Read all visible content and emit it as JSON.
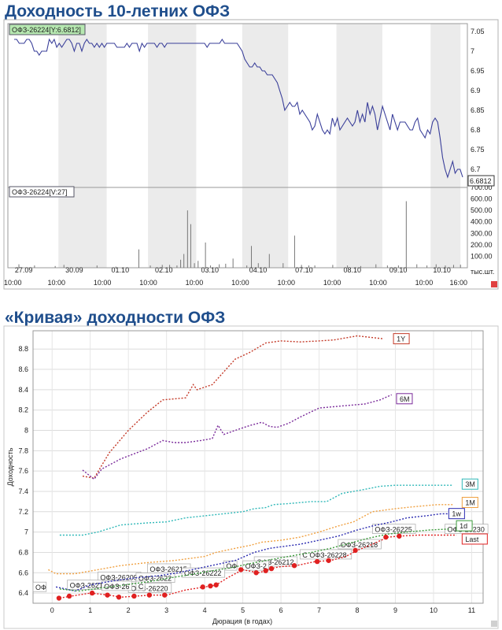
{
  "headings": {
    "top": "Доходность 10-летних ОФЗ",
    "bottom": "«Кривая» доходности ОФЗ"
  },
  "chart_data": [
    {
      "type": "line",
      "title": "Доходность 10-летних ОФЗ",
      "price_legend": "ОФЗ-26224[Y:6.6812]",
      "volume_legend": "ОФЗ-26224[V:27]",
      "last_value_label": "6.6812",
      "volume_unit": "тыс.шт.",
      "y_ticks": [
        "7.05",
        "7",
        "6.95",
        "6.9",
        "6.85",
        "6.8",
        "6.75",
        "6.7"
      ],
      "volume_ticks": [
        "700.00",
        "600.00",
        "500.00",
        "400.00",
        "300.00",
        "200.00",
        "100.00"
      ],
      "ylim": [
        6.66,
        7.07
      ],
      "volume_lim": [
        0,
        700
      ],
      "x_time_labels": [
        "10:00",
        "10:00",
        "10:00",
        "10:00",
        "10:00",
        "10:00",
        "10:00",
        "10:00",
        "10:00",
        "10:00",
        "16:00"
      ],
      "x_date_labels": [
        "27.09",
        "30.09",
        "01.10",
        "02.10",
        "03.10",
        "04.10",
        "07.10",
        "08.10",
        "09.10",
        "10.10"
      ],
      "series": [
        {
          "values": [
            7.03,
            7.03,
            7.02,
            7.02,
            7.02,
            7.03,
            7.03,
            7.02,
            7.0,
            7.0,
            6.99,
            7.0,
            7.0,
            7.0,
            7.03,
            7.02,
            7.03,
            7.01,
            7.02,
            7.01,
            7.02,
            7.03,
            7.03,
            7.02,
            7.0,
            7.02,
            7.02,
            7.0,
            7.02,
            7.03,
            7.02,
            7.02,
            7.01,
            7.02,
            7.01,
            7.02,
            7.01,
            7.02,
            7.02,
            7.02,
            7.02,
            7.01,
            7.01,
            7.01,
            7.01,
            7.02,
            7.01,
            7.02,
            7.02,
            7.02,
            7.0,
            7.02,
            7.01,
            7.02,
            7.02,
            7.02,
            7.02,
            7.01,
            7.02,
            7.02,
            7.01,
            7.02,
            7.02,
            7.02,
            7.02,
            7.02,
            7.02,
            7.02,
            7.02,
            7.02,
            7.02,
            7.02,
            7.02,
            7.02,
            7.02,
            7.02,
            7.02,
            7.01,
            7.02,
            7.02,
            7.02,
            7.02,
            7.02,
            7.03,
            7.02,
            7.02,
            7.02,
            7.02,
            7.02,
            7.02,
            7.01,
            7.0,
            6.98,
            6.97,
            6.96,
            6.96,
            6.97,
            6.96,
            6.96,
            6.95,
            6.95,
            6.94,
            6.94,
            6.94,
            6.93,
            6.92,
            6.9,
            6.88,
            6.85,
            6.86,
            6.87,
            6.86,
            6.86,
            6.87,
            6.84,
            6.85,
            6.84,
            6.83,
            6.82,
            6.8,
            6.81,
            6.84,
            6.82,
            6.8,
            6.79,
            6.8,
            6.79,
            6.83,
            6.81,
            6.83,
            6.8,
            6.81,
            6.82,
            6.83,
            6.82,
            6.81,
            6.82,
            6.85,
            6.82,
            6.84,
            6.82,
            6.87,
            6.84,
            6.86,
            6.84,
            6.8,
            6.83,
            6.86,
            6.84,
            6.82,
            6.8,
            6.84,
            6.82,
            6.8,
            6.82,
            6.82,
            6.82,
            6.81,
            6.8,
            6.8,
            6.82,
            6.83,
            6.8,
            6.79,
            6.78,
            6.8,
            6.79,
            6.82,
            6.83,
            6.82,
            6.78,
            6.73,
            6.7,
            6.68,
            6.7,
            6.72,
            6.69,
            6.7,
            6.7,
            6.68
          ]
        }
      ],
      "volume": [
        0,
        0,
        0,
        0,
        0,
        0,
        0,
        0,
        0,
        0,
        0,
        0,
        0,
        0,
        0,
        0,
        0,
        0,
        0,
        0,
        0,
        0,
        0,
        0,
        0,
        0,
        0,
        0,
        0,
        0,
        0,
        0,
        0,
        0,
        0,
        0,
        0,
        0,
        0,
        0,
        0,
        0,
        0,
        0,
        0,
        0,
        0,
        0,
        0,
        0,
        0,
        0,
        0,
        0,
        0,
        0,
        0,
        0,
        0,
        0,
        0,
        0,
        0,
        0,
        0,
        0,
        0,
        0,
        0,
        0,
        0,
        0,
        0,
        0,
        0,
        0,
        0,
        0,
        0,
        0,
        0,
        0,
        0,
        0,
        0,
        0,
        0,
        0,
        0,
        0,
        0,
        0,
        0,
        0,
        0,
        0,
        0,
        0,
        0,
        0,
        0,
        0,
        0,
        0,
        0,
        0,
        0,
        0,
        0,
        0,
        0,
        0,
        0,
        0,
        0,
        0,
        0,
        0,
        0,
        0,
        0,
        0,
        0,
        0,
        0,
        0,
        0,
        0,
        0,
        0,
        0,
        0,
        0,
        0,
        0,
        0,
        0,
        0,
        0,
        0,
        0,
        0,
        0,
        0,
        0,
        0,
        0,
        0,
        0,
        0,
        0,
        0,
        0,
        0,
        0,
        0,
        0,
        0,
        0,
        0,
        0,
        0,
        0,
        0,
        0,
        0,
        0,
        0,
        0,
        0,
        0,
        0,
        0,
        0,
        0,
        0,
        0,
        0,
        0,
        0,
        0,
        0,
        0
      ],
      "volume_bars": [
        {
          "t": 0.024,
          "v": 30
        },
        {
          "t": 0.058,
          "v": 20
        },
        {
          "t": 0.103,
          "v": 15
        },
        {
          "t": 0.122,
          "v": 25
        },
        {
          "t": 0.194,
          "v": 20
        },
        {
          "t": 0.235,
          "v": 10
        },
        {
          "t": 0.285,
          "v": 160
        },
        {
          "t": 0.31,
          "v": 20
        },
        {
          "t": 0.336,
          "v": 25
        },
        {
          "t": 0.352,
          "v": 25
        },
        {
          "t": 0.368,
          "v": 20
        },
        {
          "t": 0.376,
          "v": 70
        },
        {
          "t": 0.383,
          "v": 120
        },
        {
          "t": 0.391,
          "v": 500
        },
        {
          "t": 0.398,
          "v": 380
        },
        {
          "t": 0.406,
          "v": 40
        },
        {
          "t": 0.414,
          "v": 60
        },
        {
          "t": 0.43,
          "v": 220
        },
        {
          "t": 0.441,
          "v": 20
        },
        {
          "t": 0.46,
          "v": 30
        },
        {
          "t": 0.474,
          "v": 35
        },
        {
          "t": 0.49,
          "v": 80
        },
        {
          "t": 0.52,
          "v": 20
        },
        {
          "t": 0.53,
          "v": 190
        },
        {
          "t": 0.545,
          "v": 40
        },
        {
          "t": 0.569,
          "v": 120
        },
        {
          "t": 0.599,
          "v": 40
        },
        {
          "t": 0.624,
          "v": 280
        },
        {
          "t": 0.639,
          "v": 25
        },
        {
          "t": 0.655,
          "v": 20
        },
        {
          "t": 0.668,
          "v": 20
        },
        {
          "t": 0.707,
          "v": 25
        },
        {
          "t": 0.739,
          "v": 20
        },
        {
          "t": 0.768,
          "v": 15
        },
        {
          "t": 0.801,
          "v": 30
        },
        {
          "t": 0.826,
          "v": 20
        },
        {
          "t": 0.85,
          "v": 20
        },
        {
          "t": 0.867,
          "v": 580
        },
        {
          "t": 0.89,
          "v": 30
        },
        {
          "t": 0.912,
          "v": 20
        },
        {
          "t": 0.932,
          "v": 30
        },
        {
          "t": 0.952,
          "v": 20
        },
        {
          "t": 0.97,
          "v": 25
        },
        {
          "t": 0.985,
          "v": 27
        }
      ]
    },
    {
      "type": "line",
      "title": "«Кривая» доходности ОФЗ",
      "xlabel": "Дюрация (в годах)",
      "ylabel": "Доходность",
      "xlim": [
        -0.5,
        11.3
      ],
      "ylim": [
        6.3,
        8.98
      ],
      "x_ticks": [
        "0",
        "1",
        "2",
        "3",
        "4",
        "5",
        "6",
        "7",
        "8",
        "9",
        "10",
        "11"
      ],
      "y_ticks": [
        "6.4",
        "6.6",
        "6.8",
        "7",
        "7.2",
        "7.4",
        "7.6",
        "7.8",
        "8",
        "8.2",
        "8.4",
        "8.6",
        "8.8"
      ],
      "series": [
        {
          "name": "1Y",
          "color": "#c43a28",
          "label_at": [
            8.95,
            8.89
          ],
          "x": [
            0.8,
            1.1,
            1.5,
            2.0,
            2.5,
            2.9,
            3.2,
            3.5,
            3.7,
            3.8,
            4.2,
            4.8,
            5.2,
            5.6,
            6.0,
            6.5,
            7.0,
            7.4,
            8.0,
            8.7
          ],
          "y": [
            7.55,
            7.53,
            7.78,
            8.0,
            8.18,
            8.3,
            8.31,
            8.32,
            8.45,
            8.4,
            8.45,
            8.7,
            8.77,
            8.86,
            8.88,
            8.87,
            8.88,
            8.89,
            8.93,
            8.9
          ]
        },
        {
          "name": "6M",
          "color": "#7a2a9a",
          "label_at": [
            9.03,
            8.3
          ],
          "x": [
            0.8,
            1.1,
            1.3,
            1.8,
            2.5,
            2.9,
            3.2,
            3.5,
            3.9,
            4.2,
            4.35,
            4.5,
            4.8,
            5.2,
            5.5,
            5.7,
            5.9,
            6.2,
            6.5,
            7.0,
            7.6,
            8.2,
            8.6,
            8.9
          ],
          "y": [
            7.61,
            7.52,
            7.62,
            7.72,
            7.82,
            7.9,
            7.88,
            7.88,
            7.9,
            7.92,
            8.05,
            7.96,
            8.0,
            8.05,
            8.08,
            8.04,
            8.03,
            8.07,
            8.13,
            8.22,
            8.24,
            8.26,
            8.3,
            8.35
          ]
        },
        {
          "name": "3M",
          "color": "#2fb8b8",
          "label_at": [
            10.75,
            7.46
          ],
          "x": [
            0.2,
            0.8,
            1.2,
            1.8,
            2.5,
            3.0,
            3.5,
            4.0,
            4.5,
            5.0,
            5.3,
            5.6,
            5.8,
            6.2,
            6.8,
            7.2,
            7.6,
            8.2,
            8.6,
            9.0,
            9.6,
            10.1,
            10.5
          ],
          "y": [
            6.97,
            6.97,
            7.0,
            7.07,
            7.09,
            7.1,
            7.14,
            7.16,
            7.18,
            7.2,
            7.23,
            7.24,
            7.27,
            7.28,
            7.3,
            7.3,
            7.38,
            7.42,
            7.45,
            7.46,
            7.46,
            7.46,
            7.46
          ]
        },
        {
          "name": "1M",
          "color": "#f0a040",
          "label_at": [
            10.75,
            7.28
          ],
          "x": [
            -0.1,
            0.1,
            0.6,
            1.2,
            1.8,
            2.5,
            3.2,
            3.6,
            4.0,
            4.3,
            4.8,
            5.2,
            5.5,
            6.0,
            6.5,
            7.0,
            7.5,
            7.9,
            8.4,
            9.0,
            9.5,
            10.1,
            10.5
          ],
          "y": [
            6.63,
            6.59,
            6.59,
            6.63,
            6.67,
            6.7,
            6.72,
            6.74,
            6.76,
            6.8,
            6.84,
            6.87,
            6.9,
            6.92,
            6.95,
            7.0,
            7.06,
            7.1,
            7.2,
            7.23,
            7.25,
            7.27,
            7.27
          ]
        },
        {
          "name": "1w",
          "color": "#2a2ab0",
          "label_at": [
            10.4,
            7.17
          ],
          "x": [
            0.1,
            0.6,
            1.0,
            1.6,
            2.2,
            2.8,
            3.3,
            3.8,
            4.3,
            4.8,
            5.3,
            5.7,
            6.1,
            6.5,
            7.0,
            7.5,
            8.0,
            8.4,
            8.9,
            9.3,
            9.8,
            10.2,
            10.5
          ],
          "y": [
            6.46,
            6.42,
            6.48,
            6.52,
            6.55,
            6.57,
            6.6,
            6.64,
            6.68,
            6.72,
            6.8,
            6.84,
            6.86,
            6.88,
            6.92,
            6.96,
            7.02,
            7.06,
            7.1,
            7.14,
            7.16,
            7.18,
            7.18
          ]
        },
        {
          "name": "1d",
          "color": "#3a9a3a",
          "label_at": [
            10.6,
            7.05
          ],
          "x": [
            0.2,
            0.7,
            1.3,
            1.9,
            2.5,
            3.1,
            3.6,
            4.2,
            4.7,
            5.2,
            5.6,
            6.2,
            6.8,
            7.3,
            7.8,
            8.3,
            8.8,
            9.3,
            9.9,
            10.4
          ],
          "y": [
            6.44,
            6.42,
            6.45,
            6.48,
            6.51,
            6.55,
            6.58,
            6.62,
            6.65,
            6.69,
            6.72,
            6.76,
            6.8,
            6.84,
            6.89,
            6.94,
            6.98,
            7.0,
            7.02,
            7.03
          ]
        },
        {
          "name": "Last",
          "color": "#e02020",
          "label_at": [
            10.75,
            6.92
          ],
          "x": [
            0.2,
            0.5,
            1.0,
            1.5,
            1.8,
            2.2,
            2.6,
            3.0,
            3.5,
            4.0,
            4.2,
            4.3,
            4.6,
            5.0,
            5.4,
            5.6,
            5.7,
            6.0,
            6.4,
            6.9,
            7.3,
            7.7,
            8.0,
            8.4,
            8.8,
            9.1,
            9.6,
            10.1,
            10.6
          ],
          "y": [
            6.35,
            6.37,
            6.4,
            6.38,
            6.36,
            6.37,
            6.38,
            6.38,
            6.43,
            6.46,
            6.47,
            6.48,
            6.55,
            6.63,
            6.6,
            6.62,
            6.64,
            6.66,
            6.67,
            6.71,
            6.72,
            6.76,
            6.82,
            6.88,
            6.95,
            6.96,
            6.97,
            6.97,
            6.97
          ]
        }
      ],
      "last_points": {
        "x": [
          0.18,
          0.45,
          1.05,
          1.45,
          1.75,
          2.15,
          2.55,
          2.95,
          3.95,
          4.15,
          4.3,
          4.95,
          5.35,
          5.6,
          5.75,
          6.35,
          6.95,
          7.25,
          7.95,
          8.75,
          9.1
        ],
        "y": [
          6.35,
          6.37,
          6.4,
          6.38,
          6.36,
          6.37,
          6.38,
          6.38,
          6.46,
          6.47,
          6.48,
          6.63,
          6.6,
          6.62,
          6.64,
          6.67,
          6.71,
          6.72,
          6.82,
          6.95,
          6.96
        ]
      },
      "annotations": [
        {
          "text": "ОФЗ-26225",
          "x": 8.4,
          "y": 7.0
        },
        {
          "text": "ОФЗ-26230",
          "x": 10.3,
          "y": 7.0
        },
        {
          "text": "ОФЗ-26218",
          "x": 7.5,
          "y": 6.85
        },
        {
          "text": "С ОФЗ-26228",
          "x": 6.5,
          "y": 6.75
        },
        {
          "text": "ОФЗ-26212",
          "x": 5.3,
          "y": 6.68
        },
        {
          "text": "ОФ",
          "x": 4.5,
          "y": 6.64
        },
        {
          "text": "ОФЗ-2",
          "x": 5.0,
          "y": 6.64
        },
        {
          "text": "ОФЗ-26215",
          "x": 2.5,
          "y": 6.61
        },
        {
          "text": "ОФЗ-26222",
          "x": 3.4,
          "y": 6.57
        },
        {
          "text": "ОФЗ-26209",
          "x": 1.2,
          "y": 6.53
        },
        {
          "text": "ОФЗ-2622",
          "x": 2.2,
          "y": 6.52
        },
        {
          "text": "ОФЗ-26220",
          "x": 2.0,
          "y": 6.42
        },
        {
          "text": "ОФЗ-26213 ОФ",
          "x": 0.4,
          "y": 6.45
        },
        {
          "text": "ОФЗ-26",
          "x": 1.3,
          "y": 6.44
        },
        {
          "text": "С",
          "x": 2.2,
          "y": 6.44
        },
        {
          "text": "ОФ",
          "x": -0.5,
          "y": 6.43
        }
      ]
    }
  ]
}
